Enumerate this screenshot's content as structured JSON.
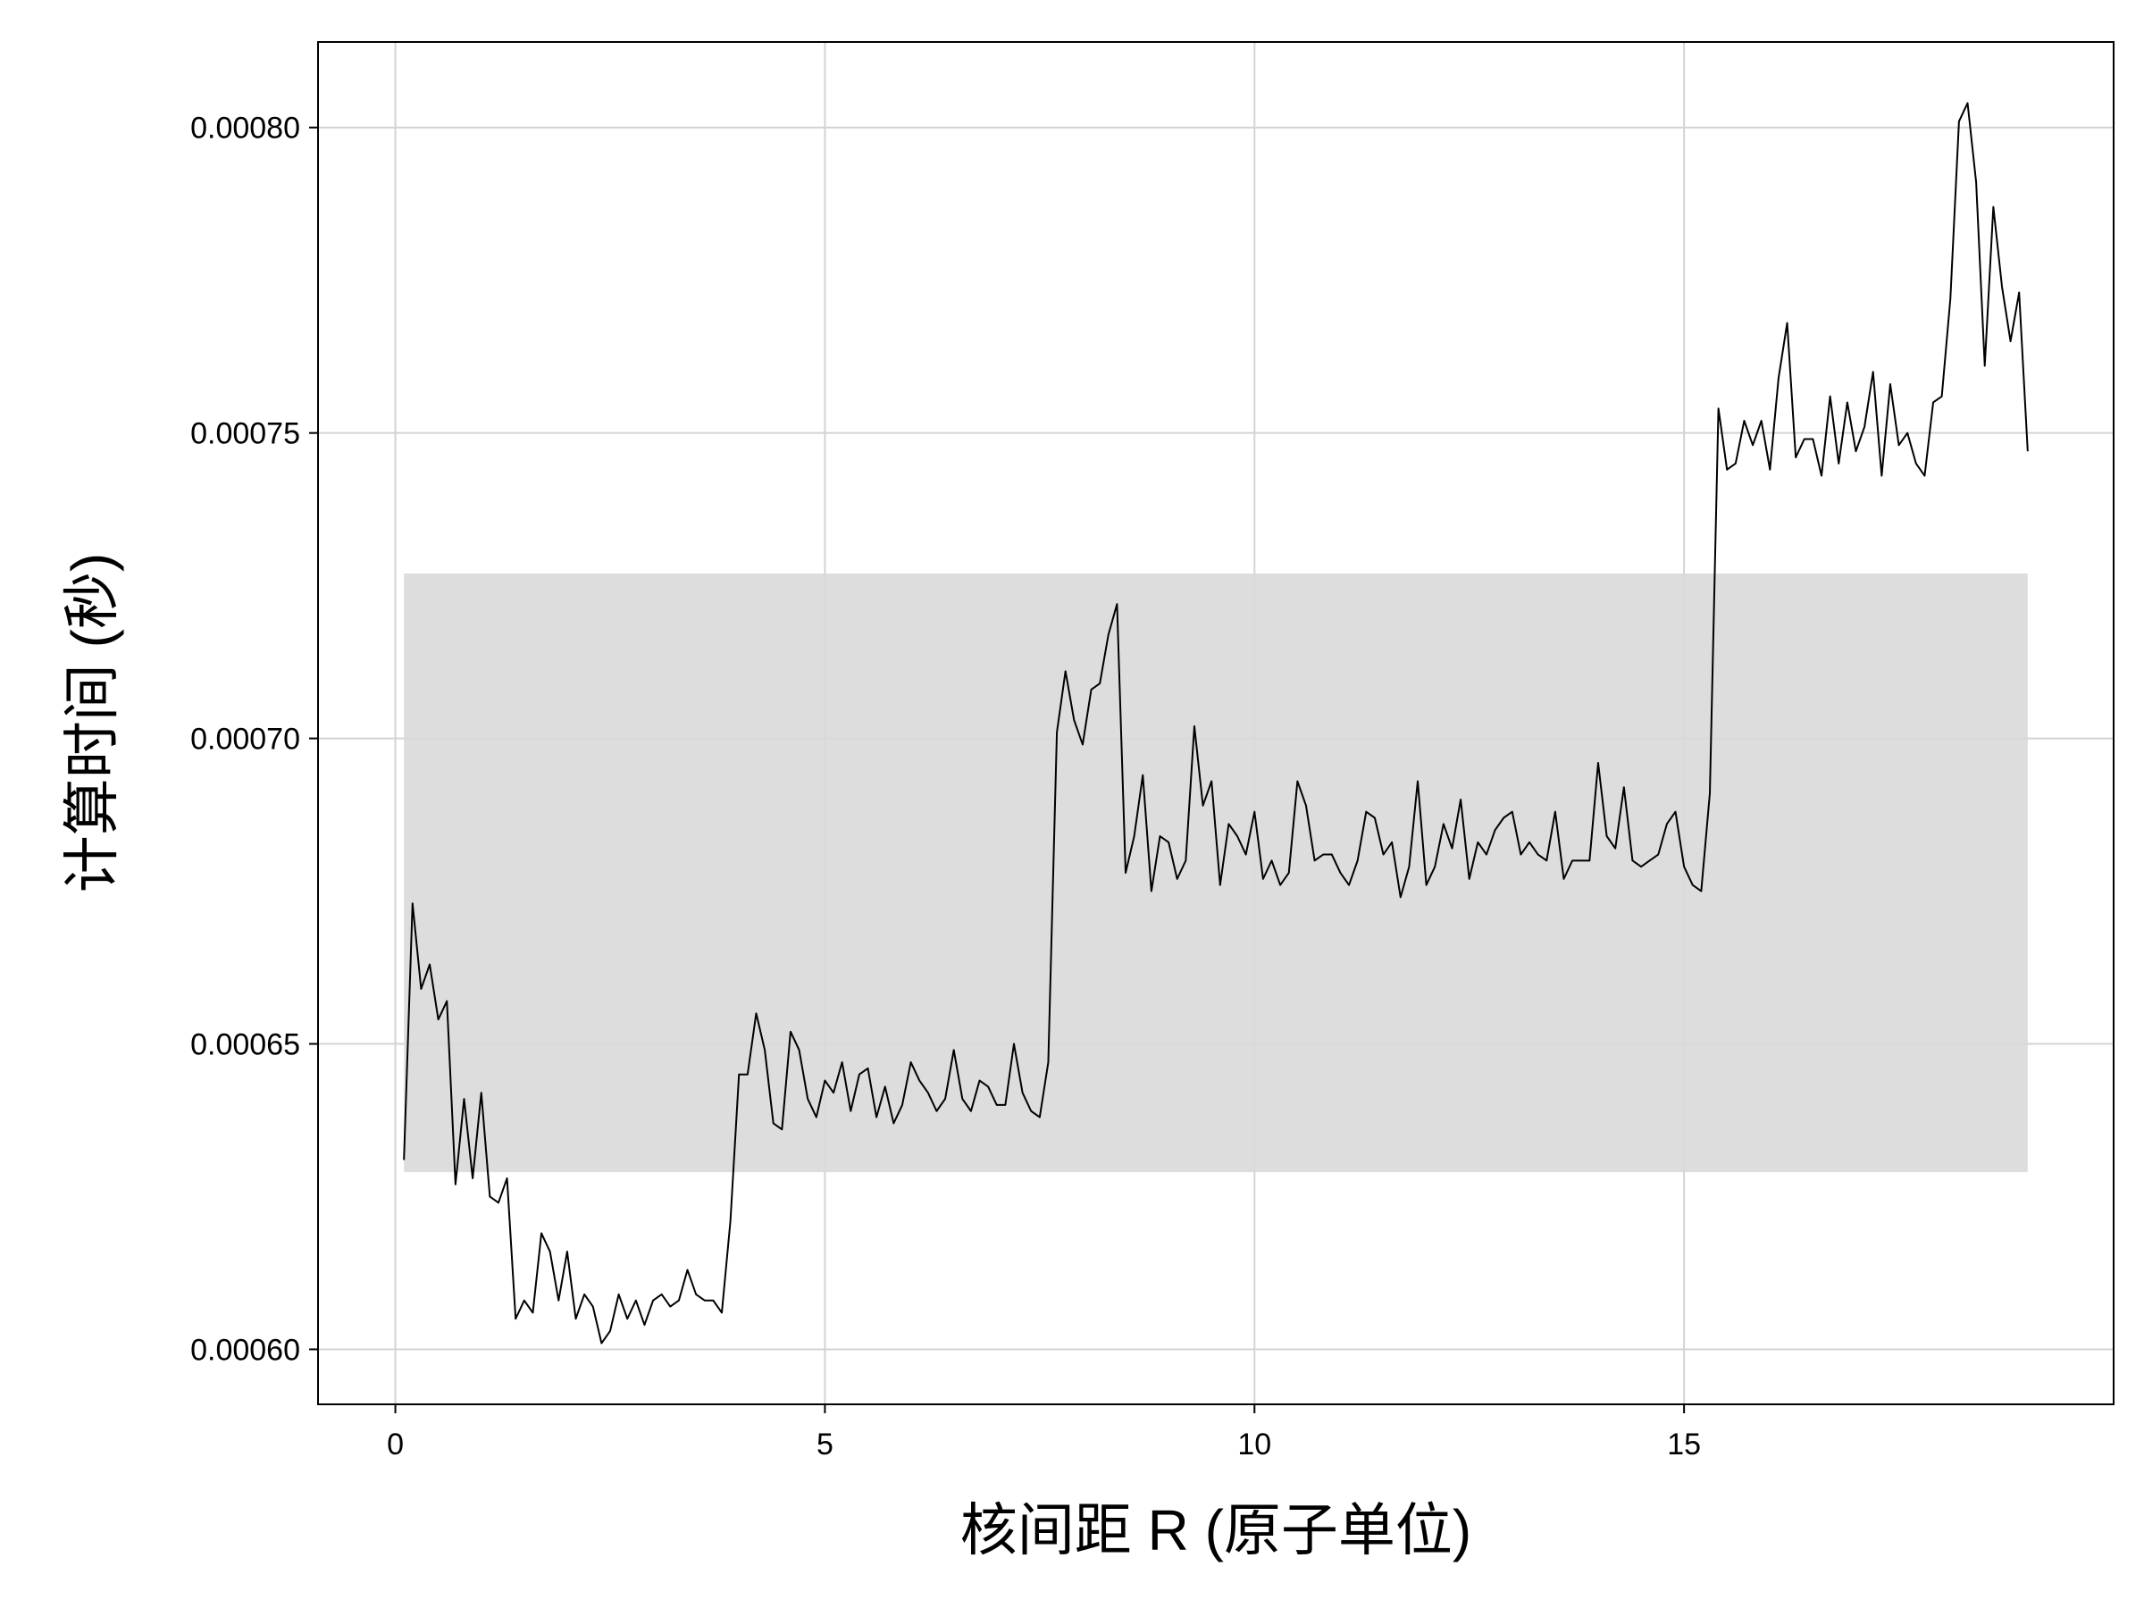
{
  "chart_data": {
    "type": "line",
    "xlabel": "核间距 R (原子单位)",
    "ylabel": "计算时间 (秒)",
    "xlim": [
      -0.9,
      20.0
    ],
    "ylim": [
      0.000591,
      0.000814
    ],
    "xticks": [
      0,
      5,
      10,
      15
    ],
    "xtick_labels": [
      "0",
      "5",
      "10",
      "15"
    ],
    "yticks": [
      0.0006,
      0.00065,
      0.0007,
      0.00075,
      0.0008
    ],
    "ytick_labels": [
      "0.00060",
      "0.00065",
      "0.00070",
      "0.00075",
      "0.00080"
    ],
    "grid": true,
    "band": {
      "x_start": 0.1,
      "x_end": 19.0,
      "y_low": 0.000629,
      "y_high": 0.000727,
      "color": "#d9d9d9"
    },
    "line_color": "#000000",
    "x": [
      0.1,
      0.2,
      0.3,
      0.4,
      0.5,
      0.6,
      0.7,
      0.8,
      0.9,
      1.0,
      1.1,
      1.2,
      1.3,
      1.4,
      1.5,
      1.6,
      1.7,
      1.8,
      1.9,
      2.0,
      2.1,
      2.2,
      2.3,
      2.4,
      2.5,
      2.6,
      2.7,
      2.8,
      2.9,
      3.0,
      3.1,
      3.2,
      3.3,
      3.4,
      3.5,
      3.6,
      3.7,
      3.8,
      3.9,
      4.0,
      4.1,
      4.2,
      4.3,
      4.4,
      4.5,
      4.6,
      4.7,
      4.8,
      4.9,
      5.0,
      5.1,
      5.2,
      5.3,
      5.4,
      5.5,
      5.6,
      5.7,
      5.8,
      5.9,
      6.0,
      6.1,
      6.2,
      6.3,
      6.4,
      6.5,
      6.6,
      6.7,
      6.8,
      6.9,
      7.0,
      7.1,
      7.2,
      7.3,
      7.4,
      7.5,
      7.6,
      7.7,
      7.8,
      7.9,
      8.0,
      8.1,
      8.2,
      8.3,
      8.4,
      8.5,
      8.6,
      8.7,
      8.8,
      8.9,
      9.0,
      9.1,
      9.2,
      9.3,
      9.4,
      9.5,
      9.6,
      9.7,
      9.8,
      9.9,
      10.0,
      10.1,
      10.2,
      10.3,
      10.4,
      10.5,
      10.6,
      10.7,
      10.8,
      10.9,
      11.0,
      11.1,
      11.2,
      11.3,
      11.4,
      11.5,
      11.6,
      11.7,
      11.8,
      11.9,
      12.0,
      12.1,
      12.2,
      12.3,
      12.4,
      12.5,
      12.6,
      12.7,
      12.8,
      12.9,
      13.0,
      13.1,
      13.2,
      13.3,
      13.4,
      13.5,
      13.6,
      13.7,
      13.8,
      13.9,
      14.0,
      14.1,
      14.2,
      14.3,
      14.4,
      14.5,
      14.6,
      14.7,
      14.8,
      14.9,
      15.0,
      15.1,
      15.2,
      15.3,
      15.4,
      15.5,
      15.6,
      15.7,
      15.8,
      15.9,
      16.0,
      16.1,
      16.2,
      16.3,
      16.4,
      16.5,
      16.6,
      16.7,
      16.8,
      16.9,
      17.0,
      17.1,
      17.2,
      17.3,
      17.4,
      17.5,
      17.6,
      17.7,
      17.8,
      17.9,
      18.0,
      18.1,
      18.2,
      18.3,
      18.4,
      18.5,
      18.6,
      18.7,
      18.8,
      18.9,
      19.0
    ],
    "series": [
      {
        "values": [
          0.000631,
          0.000673,
          0.000659,
          0.000663,
          0.000654,
          0.000657,
          0.000627,
          0.000641,
          0.000628,
          0.000642,
          0.000625,
          0.000624,
          0.000628,
          0.000605,
          0.000608,
          0.000606,
          0.000619,
          0.000616,
          0.000608,
          0.000616,
          0.000605,
          0.000609,
          0.000607,
          0.000601,
          0.000603,
          0.000609,
          0.000605,
          0.000608,
          0.000604,
          0.000608,
          0.000609,
          0.000607,
          0.000608,
          0.000613,
          0.000609,
          0.000608,
          0.000608,
          0.000606,
          0.000621,
          0.000645,
          0.000645,
          0.000655,
          0.000649,
          0.000637,
          0.000636,
          0.000652,
          0.000649,
          0.000641,
          0.000638,
          0.000644,
          0.000642,
          0.000647,
          0.000639,
          0.000645,
          0.000646,
          0.000638,
          0.000643,
          0.000637,
          0.00064,
          0.000647,
          0.000644,
          0.000642,
          0.000639,
          0.000641,
          0.000649,
          0.000641,
          0.000639,
          0.000644,
          0.000643,
          0.00064,
          0.00064,
          0.00065,
          0.000642,
          0.000639,
          0.000638,
          0.000647,
          0.000701,
          0.000711,
          0.000703,
          0.000699,
          0.000708,
          0.000709,
          0.000717,
          0.000722,
          0.000678,
          0.000684,
          0.000694,
          0.000675,
          0.000684,
          0.000683,
          0.000677,
          0.00068,
          0.000702,
          0.000689,
          0.000693,
          0.000676,
          0.000686,
          0.000684,
          0.000681,
          0.000688,
          0.000677,
          0.00068,
          0.000676,
          0.000678,
          0.000693,
          0.000689,
          0.00068,
          0.000681,
          0.000681,
          0.000678,
          0.000676,
          0.00068,
          0.000688,
          0.000687,
          0.000681,
          0.000683,
          0.000674,
          0.000679,
          0.000693,
          0.000676,
          0.000679,
          0.000686,
          0.000682,
          0.00069,
          0.000677,
          0.000683,
          0.000681,
          0.000685,
          0.000687,
          0.000688,
          0.000681,
          0.000683,
          0.000681,
          0.00068,
          0.000688,
          0.000677,
          0.00068,
          0.00068,
          0.00068,
          0.000696,
          0.000684,
          0.000682,
          0.000692,
          0.00068,
          0.000679,
          0.00068,
          0.000681,
          0.000686,
          0.000688,
          0.000679,
          0.000676,
          0.000675,
          0.000691,
          0.000754,
          0.000744,
          0.000745,
          0.000752,
          0.000748,
          0.000752,
          0.000744,
          0.000759,
          0.000768,
          0.000746,
          0.000749,
          0.000749,
          0.000743,
          0.000756,
          0.000745,
          0.000755,
          0.000747,
          0.000751,
          0.00076,
          0.000743,
          0.000758,
          0.000748,
          0.00075,
          0.000745,
          0.000743,
          0.000755,
          0.000756,
          0.000772,
          0.000801,
          0.000804,
          0.000791,
          0.000761,
          0.000787,
          0.000774,
          0.000765,
          0.000773,
          0.000747
        ]
      }
    ]
  }
}
